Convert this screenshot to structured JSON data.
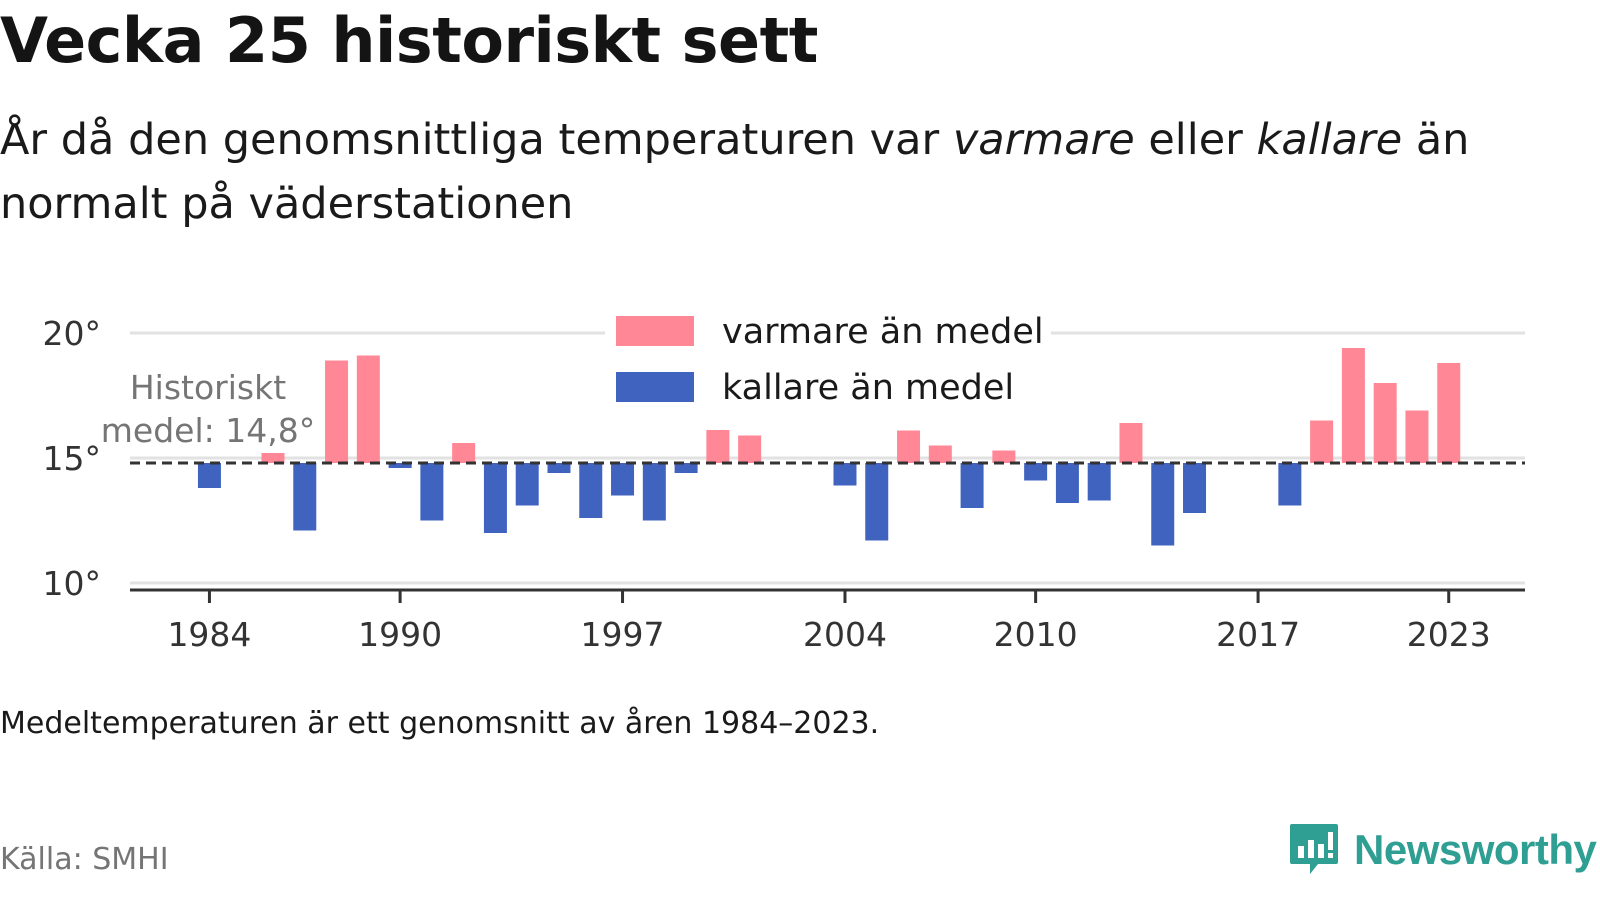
{
  "title": "Vecka 25 historiskt sett",
  "subtitle": {
    "part1": "År då den genomsnittliga temperaturen var ",
    "warm_word": "varmare",
    "part2": " eller ",
    "cold_word": "kallare",
    "part3": " än normalt på väderstationen"
  },
  "note": "Medeltemperaturen är ett genomsnitt av åren 1984–2023.",
  "source": "Källa: SMHI",
  "brand": "Newsworthy",
  "colors": {
    "warm": "#ff8796",
    "cold": "#4063bf",
    "highlight": "#ffe0e5",
    "grid": "#e2e2e2",
    "mean_line": "#333333",
    "brand": "#2f9e93"
  },
  "chart_data": {
    "type": "bar",
    "baseline": 14.8,
    "mean_label_lines": [
      "Historiskt",
      "medel: 14,8°"
    ],
    "x_ticks": [
      1984,
      1990,
      1997,
      2004,
      2010,
      2017,
      2023
    ],
    "y_ticks": [
      {
        "value": 10,
        "label": "10°"
      },
      {
        "value": 15,
        "label": "15°"
      },
      {
        "value": 20,
        "label": "20°"
      }
    ],
    "ylim": [
      10,
      20
    ],
    "xlim": [
      1981.5,
      2025.4
    ],
    "grid": true,
    "legend": [
      {
        "label": "varmare än medel",
        "key": "warm"
      },
      {
        "label": "kallare än medel",
        "key": "cold"
      }
    ],
    "legend_position": "top-center",
    "highlight_year": 2005,
    "years": [
      1984,
      1985,
      1986,
      1987,
      1988,
      1989,
      1990,
      1991,
      1992,
      1993,
      1994,
      1995,
      1996,
      1997,
      1998,
      1999,
      2000,
      2001,
      2002,
      2003,
      2004,
      2005,
      2006,
      2007,
      2008,
      2009,
      2010,
      2011,
      2012,
      2013,
      2014,
      2015,
      2016,
      2017,
      2018,
      2019,
      2020,
      2021,
      2022,
      2023
    ],
    "values": [
      13.8,
      14.8,
      15.2,
      12.1,
      18.9,
      19.1,
      14.6,
      12.5,
      15.6,
      12.0,
      13.1,
      14.4,
      12.6,
      13.5,
      12.5,
      14.4,
      16.2,
      15.9,
      14.8,
      14.8,
      13.9,
      11.7,
      16.1,
      15.5,
      13.0,
      15.3,
      14.1,
      13.2,
      13.3,
      16.4,
      11.5,
      12.8,
      14.8,
      14.8,
      13.1,
      16.5,
      19.4,
      18.0,
      16.9,
      18.8
    ]
  }
}
